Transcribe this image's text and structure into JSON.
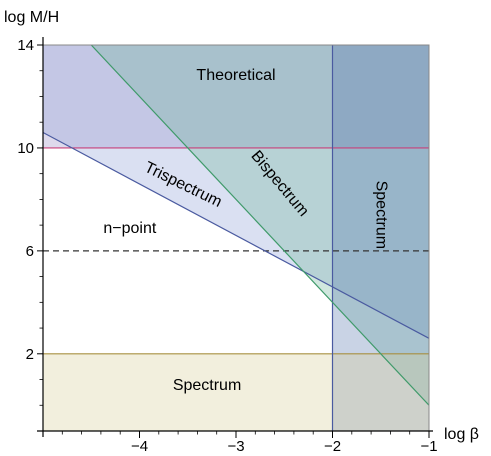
{
  "chart_data": {
    "type": "area",
    "xlabel": "log β",
    "ylabel": "log M/H",
    "xlim": [
      -5,
      -1
    ],
    "ylim": [
      -1,
      14
    ],
    "x_ticks": [
      -4,
      -3,
      -2,
      -1
    ],
    "x_tick_labels": [
      "−4",
      "−3",
      "−2",
      "−1"
    ],
    "y_ticks": [
      2,
      6,
      10,
      14
    ],
    "y_tick_labels": [
      "2",
      "6",
      "10",
      "14"
    ],
    "grid": false,
    "regions": [
      {
        "name": "Theoretical",
        "label": "Theoretical",
        "color": "#9a8fc4",
        "polygon": [
          [
            -5,
            10
          ],
          [
            -1,
            10
          ],
          [
            -1,
            14
          ],
          [
            -5,
            14
          ]
        ]
      },
      {
        "name": "Trispectrum",
        "label": "Trispectrum",
        "color": "#8ea0d8",
        "polygon": [
          [
            -5,
            10.6
          ],
          [
            -1,
            2.6
          ],
          [
            -1,
            14
          ],
          [
            -5,
            14
          ]
        ]
      },
      {
        "name": "Bispectrum",
        "label": "Bispectrum",
        "color": "#6fb59a",
        "polygon": [
          [
            -4.5,
            14
          ],
          [
            -1,
            0.0
          ],
          [
            -1,
            14
          ]
        ]
      },
      {
        "name": "Spectrum (vertical)",
        "label": "Spectrum",
        "color": "#5c7ab0",
        "polygon": [
          [
            -2,
            -1
          ],
          [
            -1,
            -1
          ],
          [
            -1,
            14
          ],
          [
            -2,
            14
          ]
        ]
      },
      {
        "name": "Spectrum (horizontal)",
        "label": "Spectrum",
        "color": "#d8ce98",
        "polygon": [
          [
            -5,
            -1
          ],
          [
            -1,
            -1
          ],
          [
            -1,
            2
          ],
          [
            -5,
            2
          ]
        ]
      }
    ],
    "lines": [
      {
        "name": "theoretical-boundary",
        "y": 10,
        "color": "#c8407a",
        "style": "solid"
      },
      {
        "name": "spectrum-boundary",
        "y": 2,
        "color": "#a89040",
        "style": "solid"
      },
      {
        "name": "spectrum-vertical-boundary",
        "x": -2,
        "color": "#4a5aa0",
        "style": "solid"
      },
      {
        "name": "n-point-threshold",
        "y": 6,
        "color": "#333333",
        "style": "dashed"
      },
      {
        "name": "trispectrum-boundary",
        "points": [
          [
            -5,
            10.6
          ],
          [
            -1,
            2.6
          ]
        ],
        "color": "#4a5aa0",
        "style": "solid"
      },
      {
        "name": "bispectrum-boundary",
        "points": [
          [
            -4.5,
            14
          ],
          [
            -1,
            0.0
          ]
        ],
        "color": "#3f9a6a",
        "style": "solid"
      }
    ],
    "annotations": [
      {
        "text": "Theoretical",
        "x": -3,
        "y": 12.8,
        "rotation": 0
      },
      {
        "text": "Trispectrum",
        "x": -3.55,
        "y": 8.55,
        "rotation": 26
      },
      {
        "text": "Bispectrum",
        "x": -2.55,
        "y": 8.6,
        "rotation": 50
      },
      {
        "text": "Spectrum",
        "x": -1.5,
        "y": 7.4,
        "rotation": 90
      },
      {
        "text": "n−point",
        "x": -4.1,
        "y": 6.85,
        "rotation": 0
      },
      {
        "text": "Spectrum",
        "x": -3.3,
        "y": 0.75,
        "rotation": 0
      }
    ]
  }
}
